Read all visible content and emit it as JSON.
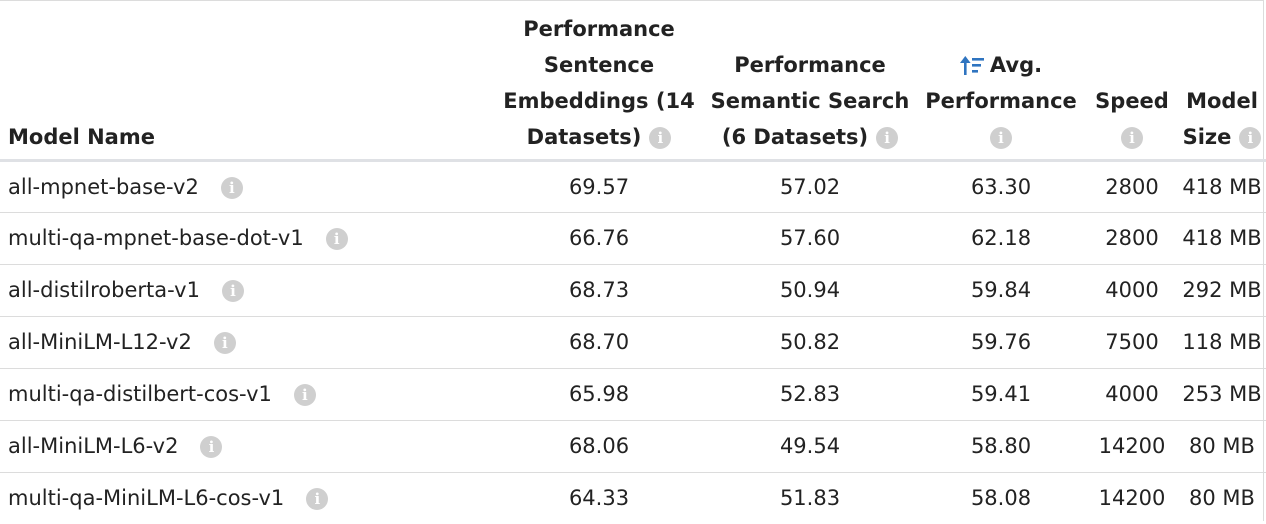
{
  "columns": {
    "name": "Model Name",
    "pse": [
      "Performance",
      "Sentence",
      "Embeddings (14",
      "Datasets)"
    ],
    "pss": [
      "Performance",
      "Semantic Search",
      "(6 Datasets)"
    ],
    "avg": [
      "Avg.",
      "Performance"
    ],
    "speed": "Speed",
    "size": [
      "Model",
      "Size"
    ]
  },
  "sort": {
    "column": "avg",
    "icon": "sort-descending-icon",
    "color": "#2f74c0"
  },
  "rows": [
    {
      "name": "all-mpnet-base-v2",
      "pse": "69.57",
      "pss": "57.02",
      "avg": "63.30",
      "speed": "2800",
      "size": "418 MB"
    },
    {
      "name": "multi-qa-mpnet-base-dot-v1",
      "pse": "66.76",
      "pss": "57.60",
      "avg": "62.18",
      "speed": "2800",
      "size": "418 MB"
    },
    {
      "name": "all-distilroberta-v1",
      "pse": "68.73",
      "pss": "50.94",
      "avg": "59.84",
      "speed": "4000",
      "size": "292 MB"
    },
    {
      "name": "all-MiniLM-L12-v2",
      "pse": "68.70",
      "pss": "50.82",
      "avg": "59.76",
      "speed": "7500",
      "size": "118 MB"
    },
    {
      "name": "multi-qa-distilbert-cos-v1",
      "pse": "65.98",
      "pss": "52.83",
      "avg": "59.41",
      "speed": "4000",
      "size": "253 MB"
    },
    {
      "name": "all-MiniLM-L6-v2",
      "pse": "68.06",
      "pss": "49.54",
      "avg": "58.80",
      "speed": "14200",
      "size": "80 MB"
    },
    {
      "name": "multi-qa-MiniLM-L6-cos-v1",
      "pse": "64.33",
      "pss": "51.83",
      "avg": "58.08",
      "speed": "14200",
      "size": "80 MB"
    }
  ]
}
